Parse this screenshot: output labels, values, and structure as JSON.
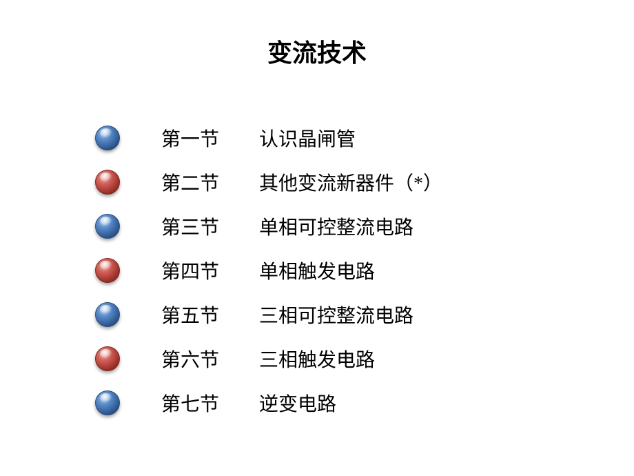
{
  "page": {
    "title": "变流技术",
    "title_fontsize": 36,
    "background_color": "#ffffff",
    "text_color": "#000000"
  },
  "bullets": {
    "blue": {
      "gradient_start": "#a8c8f0",
      "gradient_mid": "#3a6aa8",
      "gradient_end": "#1a3358",
      "border": "#2a4a78"
    },
    "red": {
      "gradient_start": "#f0b0a8",
      "gradient_mid": "#b04038",
      "gradient_end": "#6a1810",
      "border": "#7a2820"
    },
    "diameter": 36,
    "shadow": "0 3px 5px rgba(0,0,0,0.35)"
  },
  "list": {
    "item_fontsize": 28,
    "item_height": 64,
    "items": [
      {
        "color": "blue",
        "label": "第一节",
        "title": "认识晶闸管"
      },
      {
        "color": "red",
        "label": "第二节",
        "title": "其他变流新器件（*）"
      },
      {
        "color": "blue",
        "label": "第三节",
        "title": "单相可控整流电路"
      },
      {
        "color": "red",
        "label": "第四节",
        "title": "单相触发电路"
      },
      {
        "color": "blue",
        "label": "第五节",
        "title": "三相可控整流电路"
      },
      {
        "color": "red",
        "label": "第六节",
        "title": "三相触发电路"
      },
      {
        "color": "blue",
        "label": "第七节",
        "title": "逆变电路"
      }
    ]
  }
}
